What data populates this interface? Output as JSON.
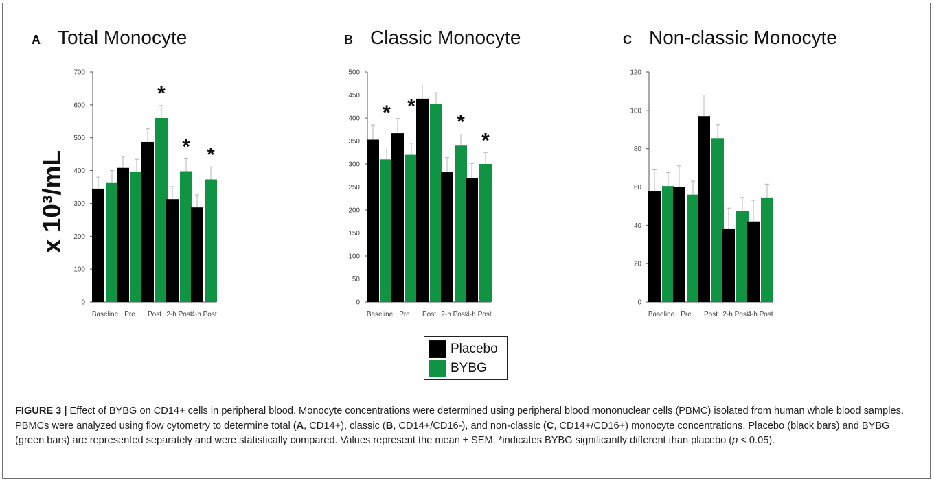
{
  "colors": {
    "placebo": "#000000",
    "bybg": "#119344",
    "frame": "#6e6e6e"
  },
  "y_axis_label": "x 10³/mL",
  "significance_marker": "*",
  "legend": [
    {
      "label": "Placebo",
      "color": "#000000"
    },
    {
      "label": "BYBG",
      "color": "#119344"
    }
  ],
  "chart_data": [
    {
      "type": "bar",
      "panel": "A",
      "title": "Total Monocyte",
      "categories": [
        "Baseline",
        "Pre",
        "Post",
        "2-h Post",
        "4-h Post"
      ],
      "series": [
        {
          "name": "Placebo",
          "values": [
            345,
            408,
            487,
            313,
            288
          ],
          "errors": [
            35,
            35,
            40,
            38,
            38
          ]
        },
        {
          "name": "BYBG",
          "values": [
            362,
            396,
            560,
            398,
            373
          ],
          "errors": [
            38,
            38,
            38,
            38,
            38
          ]
        }
      ],
      "significant": [
        false,
        false,
        true,
        true,
        true
      ],
      "ylim": [
        0,
        700
      ],
      "yticks": [
        0,
        100,
        200,
        300,
        400,
        500,
        600,
        700
      ],
      "ylabel": "x 10³/mL"
    },
    {
      "type": "bar",
      "panel": "B",
      "title": "Classic Monocyte",
      "categories": [
        "Baseline",
        "Pre",
        "Post",
        "2-h Post",
        "4-h Post"
      ],
      "series": [
        {
          "name": "Placebo",
          "values": [
            353,
            367,
            442,
            282,
            269
          ],
          "errors": [
            32,
            32,
            32,
            32,
            32
          ]
        },
        {
          "name": "BYBG",
          "values": [
            310,
            320,
            430,
            340,
            300
          ],
          "errors": [
            25,
            25,
            25,
            25,
            25
          ]
        }
      ],
      "significant": [
        true,
        true,
        false,
        true,
        true
      ],
      "ylim": [
        0,
        500
      ],
      "yticks": [
        0,
        50,
        100,
        150,
        200,
        250,
        300,
        350,
        400,
        450,
        500
      ],
      "ylabel": ""
    },
    {
      "type": "bar",
      "panel": "C",
      "title": "Non-classic Monocyte",
      "categories": [
        "Baseline",
        "Pre",
        "Post",
        "2-h Post",
        "4-h Post"
      ],
      "series": [
        {
          "name": "Placebo",
          "values": [
            58,
            60,
            97,
            38,
            42
          ],
          "errors": [
            11,
            11,
            11,
            11,
            11
          ]
        },
        {
          "name": "BYBG",
          "values": [
            60.5,
            56,
            85.5,
            47.5,
            54.5
          ],
          "errors": [
            7,
            7,
            7,
            7,
            7
          ]
        }
      ],
      "significant": [
        false,
        false,
        false,
        false,
        false
      ],
      "ylim": [
        0,
        120
      ],
      "yticks": [
        0,
        20,
        40,
        60,
        80,
        100,
        120
      ],
      "ylabel": ""
    }
  ],
  "caption": {
    "figure_label": "FIGURE 3 |",
    "title_sentence": " Effect of BYBG on CD14+ cells in peripheral blood. Monocyte concentrations were determined using peripheral blood mononuclear cells (PBMC) isolated from human whole blood samples. PBMCs were analyzed using flow cytometry to determine total (",
    "a_letter": "A",
    "after_a": ", CD14+), classic (",
    "b_letter": "B",
    "after_b": ", CD14+/CD16-), and non-classic (",
    "c_letter": "C",
    "after_c": ", CD14+/CD16+) monocyte concentrations. Placebo (black bars) and BYBG (green bars) are represented separately and were statistically compared. Values represent the mean ± SEM. *indicates BYBG significantly different than placebo (",
    "p_symbol": "p",
    "after_p": " < 0.05)."
  }
}
